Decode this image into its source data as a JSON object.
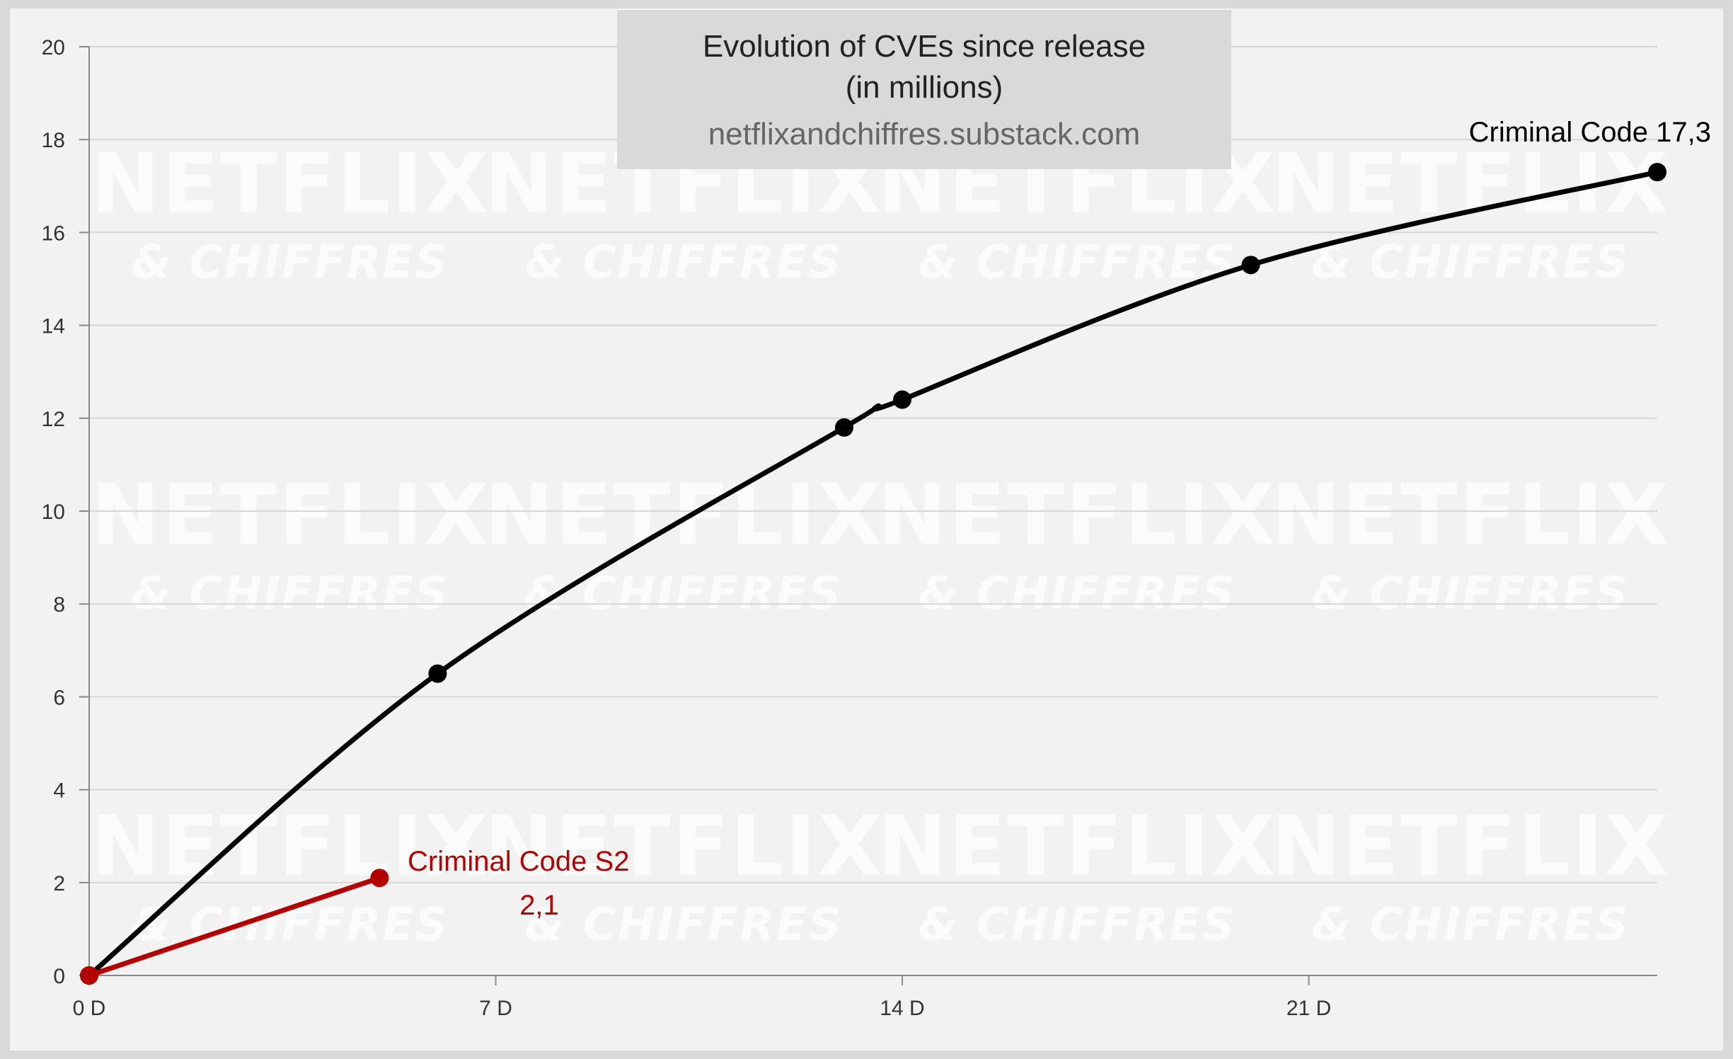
{
  "watermark": {
    "main": "NETFLIX",
    "sub": "& CHIFFRES"
  },
  "chart_data": {
    "type": "line",
    "title": "Evolution of CVEs since release",
    "title_line2": "(in millions)",
    "subtitle": "netflixandchiffres.substack.com",
    "xlabel": "",
    "ylabel": "",
    "xlim": [
      0,
      26
    ],
    "ylim": [
      0,
      20
    ],
    "x_ticks": [
      0,
      7,
      14,
      21
    ],
    "x_tick_labels": [
      "0 D",
      "7 D",
      "14 D",
      "21 D"
    ],
    "y_ticks": [
      0,
      2,
      4,
      6,
      8,
      10,
      12,
      14,
      16,
      18,
      20
    ],
    "y_tick_labels": [
      "0",
      "2",
      "4",
      "6",
      "8",
      "10",
      "12",
      "14",
      "16",
      "18",
      "20"
    ],
    "grid": true,
    "series": [
      {
        "name": "Criminal Code",
        "color": "#000000",
        "x": [
          0,
          6,
          13,
          14,
          20,
          27
        ],
        "y": [
          0,
          6.5,
          11.8,
          12.4,
          15.3,
          17.3
        ],
        "end_label": "Criminal Code 17,3"
      },
      {
        "name": "Criminal Code S2",
        "color": "#b30000",
        "x": [
          0,
          5
        ],
        "y": [
          0,
          2.1
        ],
        "end_label_line1": "Criminal Code S2",
        "end_label_line2": "2,1"
      }
    ]
  }
}
